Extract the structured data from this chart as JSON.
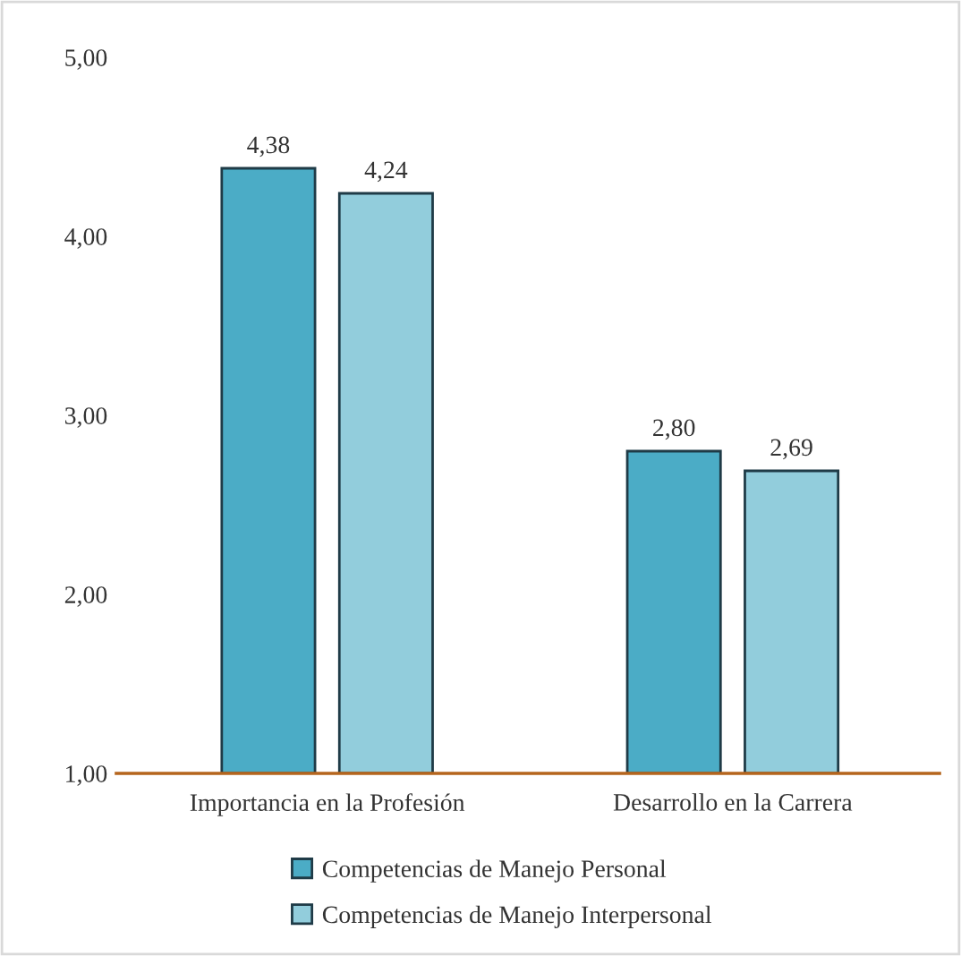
{
  "chart_data": {
    "type": "bar",
    "categories": [
      "Importancia en la Profesión",
      "Desarrollo en la Carrera"
    ],
    "series": [
      {
        "name": "Competencias de Manejo Personal",
        "color": "#4bacc6",
        "values": [
          4.38,
          2.8
        ],
        "value_labels": [
          "4,38",
          "2,80"
        ]
      },
      {
        "name": "Competencias de Manejo Interpersonal",
        "color": "#92cddc",
        "values": [
          4.24,
          2.69
        ],
        "value_labels": [
          "4,24",
          "2,69"
        ]
      }
    ],
    "ylim": [
      1,
      5
    ],
    "yticks": [
      {
        "value": 1,
        "label": "1,00"
      },
      {
        "value": 2,
        "label": "2,00"
      },
      {
        "value": 3,
        "label": "3,00"
      },
      {
        "value": 4,
        "label": "4,00"
      },
      {
        "value": 5,
        "label": "5,00"
      }
    ],
    "grid": false,
    "legend": "bottom"
  }
}
